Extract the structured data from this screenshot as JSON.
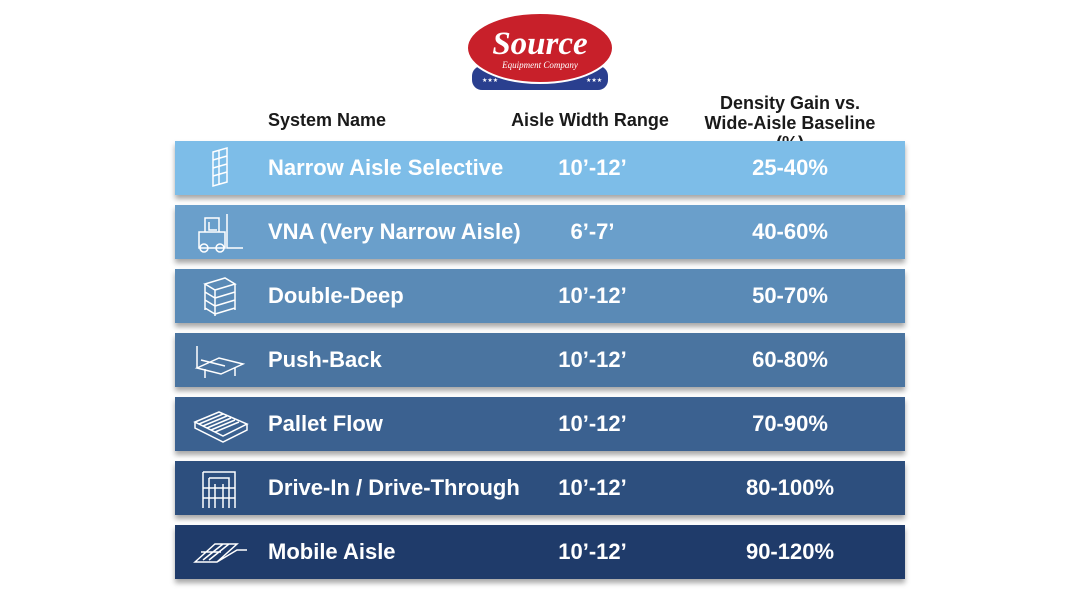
{
  "logo": {
    "brand": "Source",
    "subtitle": "Equipment Company",
    "colors": {
      "red": "#c8202a",
      "blue": "#2a3f8f"
    }
  },
  "headers": {
    "system": "System Name",
    "aisle": "Aisle Width Range",
    "gain_line1": "Density Gain vs.",
    "gain_line2": "Wide-Aisle Baseline (%)"
  },
  "rows": [
    {
      "icon": "selective-rack-icon",
      "name": "Narrow Aisle Selective",
      "aisle": "10’-12’",
      "gain": "25-40%",
      "color": "#7dbde8"
    },
    {
      "icon": "forklift-icon",
      "name": "VNA (Very Narrow Aisle)",
      "aisle": "6’-7’",
      "gain": "40-60%",
      "color": "#6a9fcb"
    },
    {
      "icon": "double-deep-rack-icon",
      "name": "Double-Deep",
      "aisle": "10’-12’",
      "gain": "50-70%",
      "color": "#5a8ab6"
    },
    {
      "icon": "push-back-rack-icon",
      "name": "Push-Back",
      "aisle": "10’-12’",
      "gain": "60-80%",
      "color": "#4a74a0"
    },
    {
      "icon": "pallet-flow-icon",
      "name": "Pallet Flow",
      "aisle": "10’-12’",
      "gain": "70-90%",
      "color": "#3b6190"
    },
    {
      "icon": "drive-in-rack-icon",
      "name": "Drive-In / Drive-Through",
      "aisle": "10’-12’",
      "gain": "80-100%",
      "color": "#2d4f7e"
    },
    {
      "icon": "mobile-aisle-icon",
      "name": "Mobile Aisle",
      "aisle": "10’-12’",
      "gain": "90-120%",
      "color": "#1f3b6a"
    }
  ]
}
